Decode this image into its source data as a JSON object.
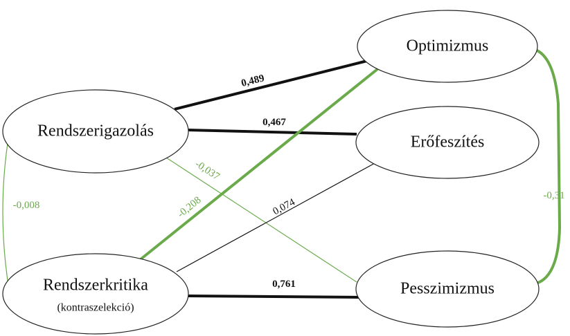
{
  "nodes": [
    {
      "label": "Optimizmus"
    },
    {
      "label": "Rendszerigazolás"
    },
    {
      "label": "Erőfeszítés"
    },
    {
      "label": "Rendszerkritika",
      "sublabel": "(kontraszelekció)"
    },
    {
      "label": "Pesszimizmus"
    }
  ],
  "edges": [
    {
      "label": "0,489"
    },
    {
      "label": "0,467"
    },
    {
      "label": "-0,037"
    },
    {
      "label": "-0,208"
    },
    {
      "label": "0,074"
    },
    {
      "label": "0,761"
    },
    {
      "label": "-0,008"
    },
    {
      "label": "-0,31"
    }
  ]
}
